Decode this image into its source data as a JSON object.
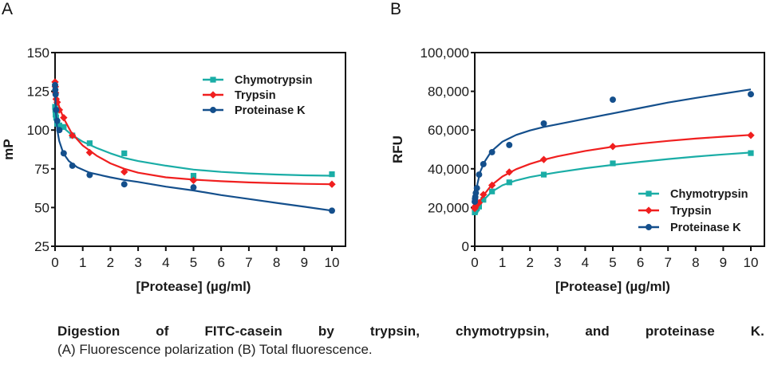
{
  "panel_labels": {
    "a": "A",
    "b": "B"
  },
  "caption": {
    "title_words": [
      "Digestion",
      "of",
      "FITC-casein",
      "by",
      "trypsin,",
      "chymotrypsin,",
      "and",
      "proteinase",
      "K."
    ],
    "subtitle": "(A) Fluorescence polarization (B) Total fluorescence."
  },
  "colors": {
    "Chymotrypsin": "#1aada6",
    "Trypsin": "#f01f1f",
    "Proteinase K": "#144f8c",
    "axis": "#111111"
  },
  "chart_data": [
    {
      "id": "A",
      "type": "scatter",
      "title": "",
      "xlabel": "[Protease] (µg/ml)",
      "ylabel": "mP",
      "xlim": [
        0,
        10
      ],
      "ylim": [
        25,
        150
      ],
      "xticks": [
        0,
        1,
        2,
        3,
        4,
        5,
        6,
        7,
        8,
        9,
        10
      ],
      "yticks": [
        25,
        50,
        75,
        100,
        125,
        150
      ],
      "ytick_labels": [
        "25",
        "50",
        "75",
        "100",
        "125",
        "150"
      ],
      "grid": false,
      "legend_position": "top-right",
      "x": [
        0,
        0.0098,
        0.0195,
        0.039,
        0.078,
        0.156,
        0.3125,
        0.625,
        1.25,
        2.5,
        5,
        10
      ],
      "series": [
        {
          "name": "Chymotrypsin",
          "marker": "square",
          "values": [
            115,
            113,
            110,
            108,
            104,
            103,
            102,
            96.5,
            91.5,
            85,
            70.5,
            71.5
          ],
          "fit": [
            [
              0,
              116
            ],
            [
              0.05,
              108
            ],
            [
              0.15,
              104
            ],
            [
              0.3,
              101.5
            ],
            [
              0.6,
              97
            ],
            [
              1,
              92.5
            ],
            [
              1.5,
              88.5
            ],
            [
              2,
              85
            ],
            [
              2.5,
              82
            ],
            [
              3,
              80
            ],
            [
              4,
              77
            ],
            [
              5,
              74.5
            ],
            [
              6,
              73
            ],
            [
              7,
              72
            ],
            [
              8,
              71.3
            ],
            [
              9,
              70.8
            ],
            [
              10,
              70.5
            ]
          ]
        },
        {
          "name": "Trypsin",
          "marker": "diamond",
          "values": [
            131,
            128,
            124,
            120,
            118,
            113,
            108,
            96.5,
            85.5,
            73,
            67.5,
            65
          ],
          "fit": [
            [
              0,
              131
            ],
            [
              0.05,
              122
            ],
            [
              0.15,
              115
            ],
            [
              0.3,
              108
            ],
            [
              0.6,
              98
            ],
            [
              1,
              90
            ],
            [
              1.5,
              83.5
            ],
            [
              2,
              78.5
            ],
            [
              2.5,
              75
            ],
            [
              3,
              72.5
            ],
            [
              4,
              69.5
            ],
            [
              5,
              68
            ],
            [
              6,
              67
            ],
            [
              7,
              66.2
            ],
            [
              8,
              65.7
            ],
            [
              9,
              65.3
            ],
            [
              10,
              65
            ]
          ]
        },
        {
          "name": "Proteinase K",
          "marker": "circle",
          "values": [
            129,
            126,
            123,
            113,
            106,
            100,
            85,
            77,
            71,
            65,
            63,
            48
          ],
          "fit": [
            [
              0,
              129
            ],
            [
              0.03,
              112
            ],
            [
              0.08,
              100
            ],
            [
              0.15,
              93
            ],
            [
              0.3,
              85
            ],
            [
              0.5,
              80
            ],
            [
              0.8,
              76
            ],
            [
              1.25,
              72.5
            ],
            [
              2,
              69.5
            ],
            [
              2.5,
              67.8
            ],
            [
              3,
              66.5
            ],
            [
              4,
              63.5
            ],
            [
              5,
              61
            ],
            [
              6,
              58
            ],
            [
              7,
              55.5
            ],
            [
              8,
              53
            ],
            [
              9,
              50.5
            ],
            [
              10,
              48
            ]
          ]
        }
      ]
    },
    {
      "id": "B",
      "type": "scatter",
      "title": "",
      "xlabel": "[Protease] (µg/ml)",
      "ylabel": "RFU",
      "xlim": [
        0,
        10
      ],
      "ylim": [
        0,
        100000
      ],
      "xticks": [
        0,
        1,
        2,
        3,
        4,
        5,
        6,
        7,
        8,
        9,
        10
      ],
      "yticks": [
        0,
        20000,
        40000,
        60000,
        80000,
        100000
      ],
      "ytick_labels": [
        "0",
        "20,000",
        "40,000",
        "60,000",
        "80,000",
        "100,000"
      ],
      "grid": false,
      "legend_position": "bottom-right",
      "x": [
        0,
        0.0098,
        0.0195,
        0.039,
        0.078,
        0.156,
        0.3125,
        0.625,
        1.25,
        2.5,
        5,
        10
      ],
      "series": [
        {
          "name": "Chymotrypsin",
          "marker": "square",
          "values": [
            17500,
            18000,
            18500,
            19000,
            19500,
            20500,
            24000,
            28300,
            33000,
            37000,
            42800,
            48100
          ],
          "fit": [
            [
              0,
              17500
            ],
            [
              0.1,
              19500
            ],
            [
              0.3,
              23500
            ],
            [
              0.6,
              28000
            ],
            [
              1,
              31500
            ],
            [
              1.5,
              34000
            ],
            [
              2,
              35700
            ],
            [
              2.5,
              37000
            ],
            [
              3,
              38200
            ],
            [
              4,
              40300
            ],
            [
              5,
              42000
            ],
            [
              6,
              43600
            ],
            [
              7,
              45000
            ],
            [
              8,
              46300
            ],
            [
              9,
              47400
            ],
            [
              10,
              48400
            ]
          ]
        },
        {
          "name": "Trypsin",
          "marker": "diamond",
          "values": [
            19500,
            20000,
            20500,
            21000,
            21500,
            22500,
            26700,
            31500,
            38300,
            44800,
            51500,
            57300
          ],
          "fit": [
            [
              0,
              19500
            ],
            [
              0.1,
              21500
            ],
            [
              0.3,
              26000
            ],
            [
              0.6,
              31500
            ],
            [
              1,
              36000
            ],
            [
              1.5,
              39800
            ],
            [
              2,
              42500
            ],
            [
              2.5,
              44700
            ],
            [
              3,
              46400
            ],
            [
              4,
              49200
            ],
            [
              5,
              51400
            ],
            [
              6,
              53000
            ],
            [
              7,
              54400
            ],
            [
              8,
              55600
            ],
            [
              9,
              56600
            ],
            [
              10,
              57500
            ]
          ]
        },
        {
          "name": "Proteinase K",
          "marker": "circle",
          "values": [
            23000,
            24500,
            25500,
            27500,
            30000,
            37000,
            42400,
            48600,
            52300,
            63400,
            75700,
            78500
          ],
          "fit": [
            [
              0,
              22000
            ],
            [
              0.05,
              28000
            ],
            [
              0.1,
              32500
            ],
            [
              0.2,
              38500
            ],
            [
              0.35,
              43500
            ],
            [
              0.6,
              49000
            ],
            [
              1,
              54000
            ],
            [
              1.5,
              57500
            ],
            [
              2,
              59800
            ],
            [
              2.5,
              61600
            ],
            [
              3,
              63000
            ],
            [
              4,
              65800
            ],
            [
              5,
              68600
            ],
            [
              6,
              71400
            ],
            [
              7,
              74200
            ],
            [
              8,
              76600
            ],
            [
              9,
              78800
            ],
            [
              10,
              81000
            ]
          ]
        }
      ]
    }
  ]
}
